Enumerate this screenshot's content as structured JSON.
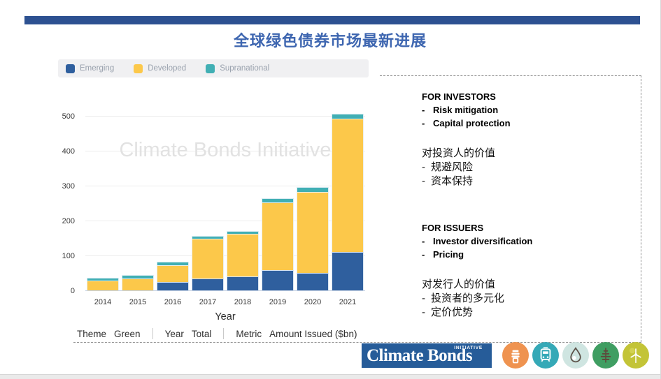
{
  "title": "全球绿色债券市场最新进展",
  "colors": {
    "header_bar": "#2d5191",
    "title_text": "#3e66b0",
    "emerging": "#2f5f9e",
    "developed": "#fcc84a",
    "supranational": "#41afb4",
    "logo_bg": "#265c99"
  },
  "legend": {
    "items": [
      {
        "label": "Emerging",
        "color": "#2f5f9e"
      },
      {
        "label": "Developed",
        "color": "#fcc84a"
      },
      {
        "label": "Supranational",
        "color": "#41afb4"
      }
    ]
  },
  "chart_data": {
    "type": "bar",
    "stacked": true,
    "categories": [
      "2014",
      "2015",
      "2016",
      "2017",
      "2018",
      "2019",
      "2020",
      "2021"
    ],
    "series": [
      {
        "name": "Emerging",
        "color": "#2f5f9e",
        "values": [
          1,
          2,
          26,
          36,
          42,
          60,
          52,
          112
        ]
      },
      {
        "name": "Developed",
        "color": "#fcc84a",
        "values": [
          28,
          35,
          48,
          115,
          122,
          194,
          233,
          383
        ]
      },
      {
        "name": "Supranational",
        "color": "#41afb4",
        "values": [
          8,
          9,
          11,
          8,
          9,
          13,
          14,
          13
        ]
      }
    ],
    "totals": [
      37,
      46,
      85,
      159,
      173,
      267,
      299,
      508
    ],
    "title": "",
    "xlabel": "Year",
    "ylabel": "",
    "yticks": [
      0,
      100,
      200,
      300,
      400,
      500
    ],
    "ylim": [
      0,
      520
    ],
    "grid": true,
    "legend_position": "top-left",
    "watermark": "Climate Bonds Initiative"
  },
  "filter_bar": {
    "items": [
      {
        "label": "Theme",
        "value": "Green"
      },
      {
        "label": "Year",
        "value": "Total"
      },
      {
        "label": "Metric",
        "value": "Amount Issued ($bn)"
      }
    ]
  },
  "panel": {
    "investors_heading": "FOR INVESTORS",
    "investors_bullets": [
      "Risk mitigation",
      "Capital protection"
    ],
    "investors_zh_heading": "对投资人的价值",
    "investors_zh_bullets": [
      "规避风险",
      "资本保持"
    ],
    "issuers_heading": "FOR ISSUERS",
    "issuers_bullets": [
      "Investor diversification",
      "Pricing"
    ],
    "issuers_zh_heading": "对发行人的价值",
    "issuers_zh_bullets": [
      "投资者的多元化",
      "定价优势"
    ]
  },
  "footer": {
    "logo_text": "Climate Bonds",
    "logo_sub": "INITIATIVE",
    "icons": [
      {
        "name": "energy-bulb-icon",
        "color": "#ef9350"
      },
      {
        "name": "transport-train-icon",
        "color": "#35a9b7"
      },
      {
        "name": "water-drop-icon",
        "color": "#cfe5e1"
      },
      {
        "name": "forest-tree-icon",
        "color": "#3f9e62"
      },
      {
        "name": "wind-turbine-icon",
        "color": "#c3c437"
      }
    ]
  }
}
